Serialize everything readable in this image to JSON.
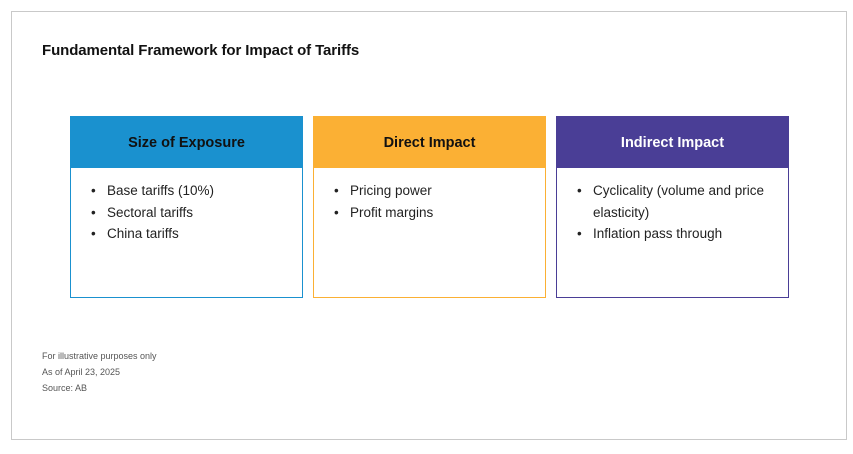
{
  "title": "Fundamental Framework for Impact of Tariffs",
  "cards": [
    {
      "header": "Size of Exposure",
      "color": "#1a91cf",
      "header_text_color": "#111111",
      "items": [
        "Base tariffs (10%)",
        "Sectoral tariffs",
        "China tariffs"
      ]
    },
    {
      "header": "Direct Impact",
      "color": "#fbb034",
      "header_text_color": "#111111",
      "items": [
        "Pricing power",
        "Profit margins"
      ]
    },
    {
      "header": "Indirect Impact",
      "color": "#4a3e96",
      "header_text_color": "#ffffff",
      "items": [
        "Cyclicality (volume and price elasticity)",
        "Inflation pass through"
      ]
    }
  ],
  "bullet_glyph": "•",
  "footnotes": [
    "For illustrative purposes only",
    "As of April 23, 2025",
    "Source: AB"
  ]
}
